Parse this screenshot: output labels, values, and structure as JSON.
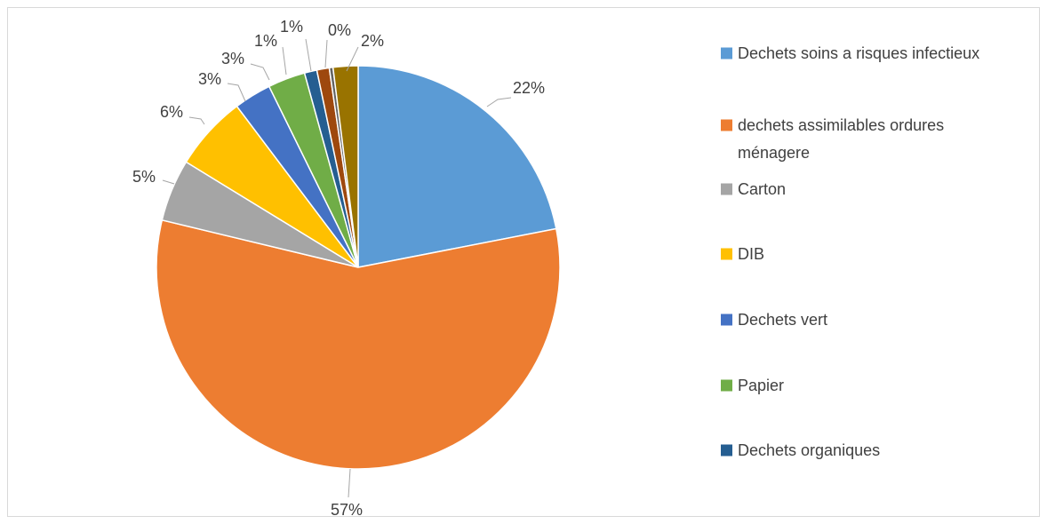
{
  "chart_data": {
    "type": "pie",
    "title": "",
    "legend_position": "right",
    "start_angle_deg": 0,
    "direction": "clockwise",
    "slices": [
      {
        "name": "Dechets soins a risques infectieux",
        "value": 22,
        "label": "22%",
        "color": "#5b9bd5"
      },
      {
        "name": "dechets assimilables ordures ménagere",
        "legend_lines": [
          "dechets assimilables ordures",
          "ménagere"
        ],
        "value": 57,
        "label": "57%",
        "color": "#ed7d31"
      },
      {
        "name": "Carton",
        "value": 5,
        "label": "5%",
        "color": "#a5a5a5"
      },
      {
        "name": "DIB",
        "value": 6,
        "label": "6%",
        "color": "#ffc000"
      },
      {
        "name": "Dechets vert",
        "value": 3,
        "label": "3%",
        "color": "#4472c4"
      },
      {
        "name": "Papier",
        "value": 3,
        "label": "3%",
        "color": "#70ad47"
      },
      {
        "name": "Dechets organiques",
        "value": 1,
        "label": "1%",
        "color": "#255e91"
      },
      {
        "name": "",
        "value": 1,
        "label": "1%",
        "color": "#9e480e"
      },
      {
        "name": "",
        "value": 0.3,
        "label": "0%",
        "color": "#636363"
      },
      {
        "name": "",
        "value": 2,
        "label": "2%",
        "color": "#997300"
      }
    ]
  }
}
